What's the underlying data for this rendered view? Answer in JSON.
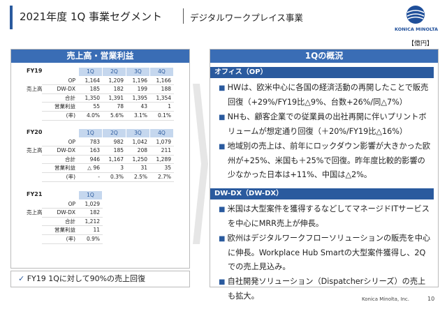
{
  "header": {
    "title": "2021年度 1Q 事業セグメント",
    "subtitle": "デジタルワークプレイス事業",
    "logo": "KONICA MINOLTA",
    "unit": "【億円】"
  },
  "left": {
    "title": "売上高・営業利益",
    "tables": [
      {
        "label": "FY19",
        "columns": [
          "1Q",
          "2Q",
          "3Q",
          "4Q"
        ],
        "group": "売上高",
        "rows": [
          {
            "label": "OP",
            "values": [
              "1,164",
              "1,209",
              "1,196",
              "1,166"
            ]
          },
          {
            "label": "DW-DX",
            "values": [
              "185",
              "182",
              "199",
              "188"
            ]
          },
          {
            "label": "合計",
            "values": [
              "1,350",
              "1,391",
              "1,395",
              "1,354"
            ]
          },
          {
            "label": "営業利益",
            "values": [
              "55",
              "78",
              "43",
              "1"
            ]
          },
          {
            "label": "(率)",
            "values": [
              "4.0%",
              "5.6%",
              "3.1%",
              "0.1%"
            ]
          }
        ]
      },
      {
        "label": "FY20",
        "columns": [
          "1Q",
          "2Q",
          "3Q",
          "4Q"
        ],
        "group": "売上高",
        "rows": [
          {
            "label": "OP",
            "values": [
              "783",
              "982",
              "1,042",
              "1,079"
            ]
          },
          {
            "label": "DW-DX",
            "values": [
              "163",
              "185",
              "208",
              "211"
            ]
          },
          {
            "label": "合計",
            "values": [
              "946",
              "1,167",
              "1,250",
              "1,289"
            ]
          },
          {
            "label": "営業利益",
            "values": [
              "△ 96",
              "3",
              "31",
              "35"
            ]
          },
          {
            "label": "(率)",
            "values": [
              "-",
              "0.3%",
              "2.5%",
              "2.7%"
            ]
          }
        ]
      },
      {
        "label": "FY21",
        "columns": [
          "1Q"
        ],
        "group": "売上高",
        "rows": [
          {
            "label": "OP",
            "values": [
              "1,029"
            ]
          },
          {
            "label": "DW-DX",
            "values": [
              "182"
            ]
          },
          {
            "label": "合計",
            "values": [
              "1,212"
            ]
          },
          {
            "label": "営業利益",
            "values": [
              "11"
            ]
          },
          {
            "label": "(率)",
            "values": [
              "0.9%"
            ]
          }
        ]
      }
    ],
    "note": "FY19 1Qに対して90%の売上回復"
  },
  "right": {
    "title": "1Qの概況",
    "sections": [
      {
        "heading": "オフィス（OP）",
        "bullets": [
          "HWは、欧米中心に各国の経済活動の再開したことで販売回復（+29%/FY19比△9%、台数+26%/同△7%）",
          "NHも、顧客企業での従業員の出社再開に伴いプリントボリュームが想定通り回復（＋20%/FY19比△16%）",
          "地域別の売上は、前年にロックダウン影響が大きかった欧州が+25%、米国も＋25%で回復。昨年度比較的影響の少なかった日本は+11%、中国は△2%。"
        ]
      },
      {
        "heading": "DW-DX（DW-DX）",
        "bullets": [
          "米国は大型案件を獲得するなどしてマネージドITサービスを中心にMRR売上が伸長。",
          "欧州はデジタルワークフローソリューションの販売を中心に伸長。Workplace Hub Smartの大型案件獲得し、2Qでの売上見込み。",
          "自社開発ソリューション（Dispatcherシリーズ）の売上も拡大。"
        ]
      }
    ]
  },
  "footer": {
    "company": "Konica Minolta, Inc.",
    "page": "10"
  }
}
